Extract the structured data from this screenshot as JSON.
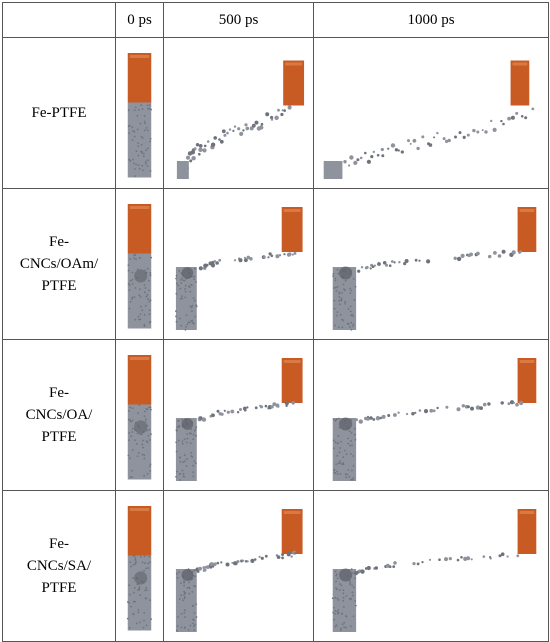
{
  "table": {
    "corner": "",
    "columns": [
      "0 ps",
      "500 ps",
      "1000 ps"
    ],
    "rows": [
      {
        "label": "Fe-PTFE"
      },
      {
        "label": "Fe-\nCNCs/OAm/\nPTFE"
      },
      {
        "label": "Fe-\nCNCs/OA/\nPTFE"
      },
      {
        "label": "Fe-\nCNCs/SA/\nPTFE"
      }
    ]
  },
  "colors": {
    "fe_block": "#c85a23",
    "fe_block_light": "#d97a45",
    "ptfe": "#8f939d",
    "ptfe_dark": "#6f737c",
    "cnc_particle": "#5b5e66",
    "grid_line": "#555555"
  }
}
